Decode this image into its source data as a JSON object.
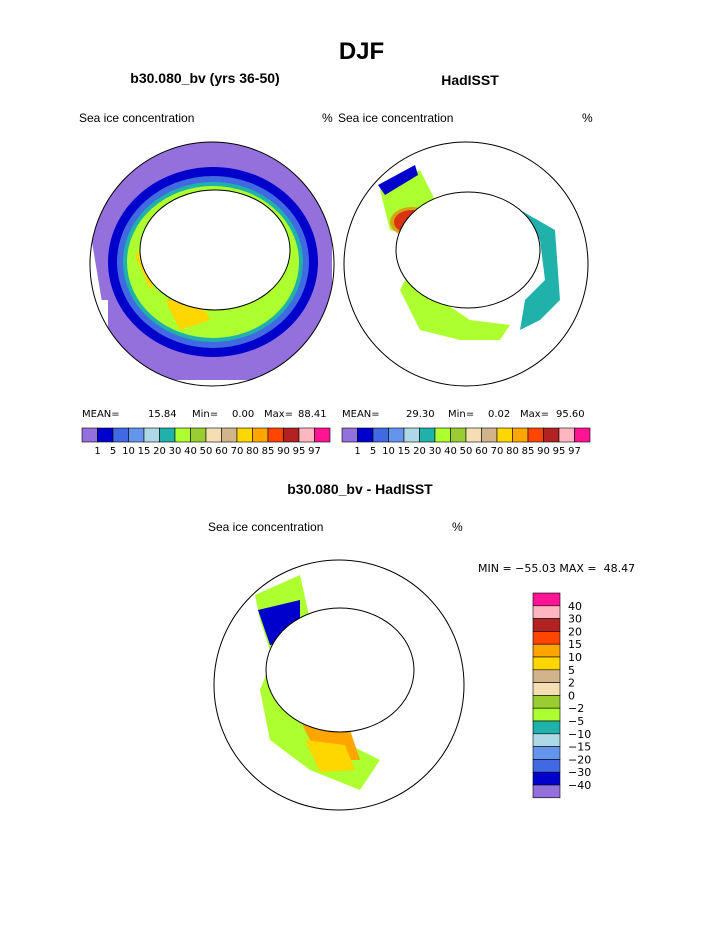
{
  "page_title": "DJF",
  "palette": [
    "#9370db",
    "#0000cd",
    "#4169e1",
    "#6495ed",
    "#add8e6",
    "#20b2aa",
    "#adff2f",
    "#9acd32",
    "#f5deb3",
    "#d2b48c",
    "#ffd700",
    "#ffa500",
    "#ff4500",
    "#b22222",
    "#ffb6c1",
    "#ff1493"
  ],
  "chart_data": [
    {
      "type": "heatmap",
      "title": "b30.080_bv (yrs 36-50)",
      "left_label": "Sea ice concentration",
      "right_label": "%",
      "stats": {
        "mean_label": "MEAN=",
        "mean": "15.84",
        "min_label": "Min=",
        "min": "0.00",
        "max_label": "Max=",
        "max": "88.41"
      },
      "levels": [
        "1",
        "5",
        "10",
        "15",
        "20",
        "30",
        "40",
        "50",
        "60",
        "70",
        "80",
        "85",
        "90",
        "95",
        "97"
      ]
    },
    {
      "type": "heatmap",
      "title": "HadISST",
      "left_label": "Sea ice concentration",
      "right_label": "%",
      "stats": {
        "mean_label": "MEAN=",
        "mean": "29.30",
        "min_label": "Min=",
        "min": "0.02",
        "max_label": "Max=",
        "max": "95.60"
      },
      "levels": [
        "1",
        "5",
        "10",
        "15",
        "20",
        "30",
        "40",
        "50",
        "60",
        "70",
        "80",
        "85",
        "90",
        "95",
        "97"
      ]
    },
    {
      "type": "heatmap",
      "title": "b30.080_bv - HadISST",
      "left_label": "Sea ice concentration",
      "right_label": "%",
      "stats_text": "MIN = −55.03 MAX =  48.47",
      "levels": [
        "40",
        "30",
        "20",
        "15",
        "10",
        "5",
        "2",
        "0",
        "−2",
        "−5",
        "−10",
        "−15",
        "−20",
        "−30",
        "−40"
      ],
      "colors": [
        "#ff1493",
        "#ffb6c1",
        "#b22222",
        "#ff4500",
        "#ffa500",
        "#ffd700",
        "#d2b48c",
        "#f5deb3",
        "#9acd32",
        "#adff2f",
        "#20b2aa",
        "#add8e6",
        "#6495ed",
        "#4169e1",
        "#0000cd",
        "#9370db"
      ]
    }
  ]
}
